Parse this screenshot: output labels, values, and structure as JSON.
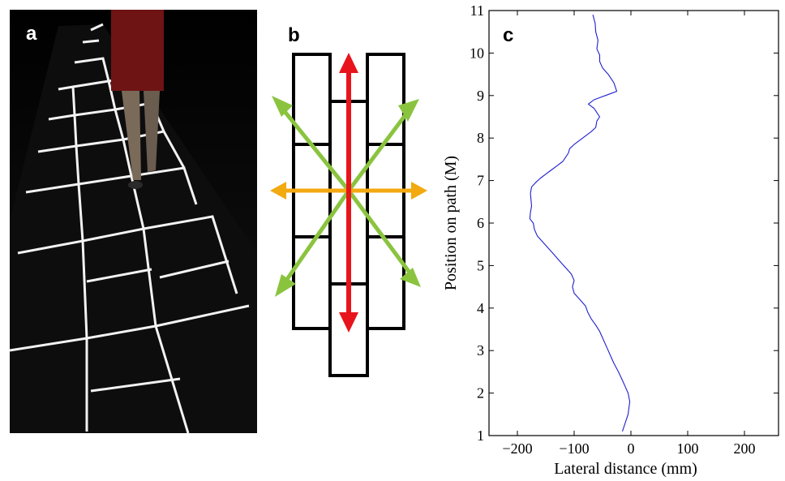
{
  "panels": {
    "a": "a",
    "b": "b",
    "c": "c"
  },
  "colors": {
    "forward_arrow": "#e8141c",
    "diagonal_arrows": "#8ac43f",
    "lateral_arrows": "#f2aa10",
    "trajectory": "#1f1fd0",
    "tile_outline": "#f2f2f2"
  },
  "chart_data": {
    "type": "line",
    "xlabel": "Lateral distance (mm)",
    "ylabel": "Position on path (M)",
    "xlim": [
      -250,
      260
    ],
    "ylim": [
      1,
      11
    ],
    "xticks": [
      -200,
      -100,
      0,
      100,
      200
    ],
    "yticks": [
      1,
      2,
      3,
      4,
      5,
      6,
      7,
      8,
      9,
      10,
      11
    ],
    "grid": false,
    "series": [
      {
        "x": [
          -15,
          -10,
          -5,
          -2,
          -5,
          -10,
          -15,
          -22,
          -30,
          -35,
          -40,
          -45,
          -50,
          -55,
          -62,
          -70,
          -76,
          -80,
          -90,
          -100,
          -103,
          -100,
          -105,
          -115,
          -125,
          -135,
          -145,
          -155,
          -165,
          -170,
          -172,
          -178,
          -177,
          -175,
          -176,
          -177,
          -175,
          -168,
          -160,
          -150,
          -140,
          -130,
          -120,
          -115,
          -110,
          -108,
          -100,
          -90,
          -80,
          -70,
          -62,
          -60,
          -55,
          -60,
          -65,
          -70,
          -75,
          -70,
          -65,
          -55,
          -45,
          -35,
          -25,
          -30,
          -40,
          -50,
          -55,
          -55,
          -60,
          -58,
          -62,
          -63,
          -67
        ],
        "y": [
          1.1,
          1.3,
          1.5,
          1.8,
          2.0,
          2.15,
          2.3,
          2.5,
          2.7,
          2.85,
          3.0,
          3.15,
          3.3,
          3.45,
          3.6,
          3.75,
          3.9,
          4.05,
          4.2,
          4.35,
          4.5,
          4.65,
          4.8,
          4.95,
          5.1,
          5.25,
          5.4,
          5.55,
          5.7,
          5.85,
          6.0,
          6.1,
          6.25,
          6.4,
          6.55,
          6.7,
          6.85,
          6.95,
          7.05,
          7.15,
          7.25,
          7.35,
          7.45,
          7.55,
          7.65,
          7.75,
          7.85,
          7.95,
          8.05,
          8.15,
          8.25,
          8.4,
          8.5,
          8.6,
          8.7,
          8.75,
          8.8,
          8.85,
          8.9,
          8.95,
          9.0,
          9.05,
          9.1,
          9.3,
          9.5,
          9.65,
          9.8,
          9.95,
          10.1,
          10.3,
          10.5,
          10.7,
          10.9
        ]
      }
    ]
  }
}
